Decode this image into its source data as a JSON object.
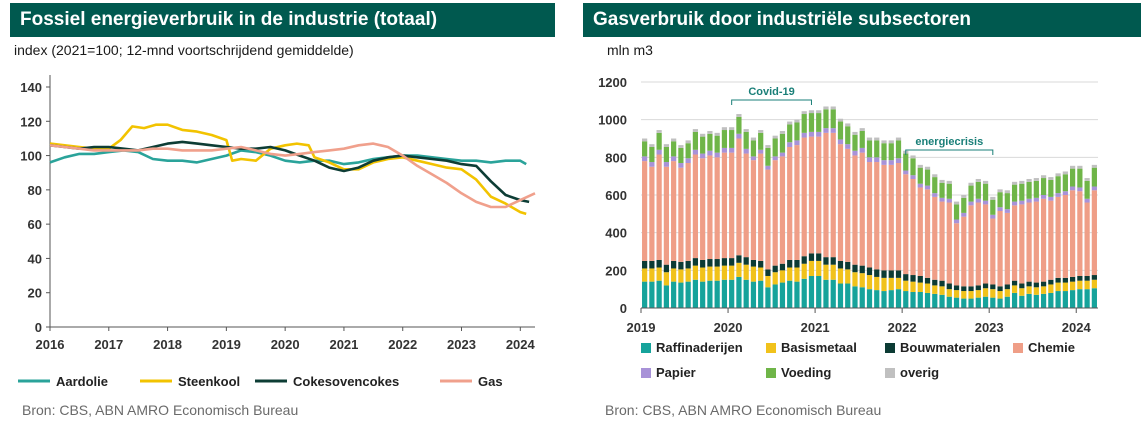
{
  "colors": {
    "header_bg": "#00594f",
    "aardolie": "#2aa39a",
    "steenkool": "#f2c300",
    "cokesovencokes": "#0d3d35",
    "gas": "#f0a08c",
    "raffinaderijen": "#16a39b",
    "basismetaal": "#f1c21b",
    "bouwmaterialen": "#0c3b34",
    "chemie": "#ef9e87",
    "papier": "#a892d8",
    "voeding": "#6fb548",
    "overig": "#c0c0c0",
    "annotation": "#1a7f78"
  },
  "left": {
    "title": "Fossiel energieverbruik in de industrie (totaal)",
    "subtitle": "index (2021=100; 12-mnd voortschrijdend gemiddelde)",
    "source": "Bron: CBS, ABN AMRO Economisch Bureau"
  },
  "right": {
    "title": "Gasverbruik door industriële subsectoren",
    "subtitle": "mln m3",
    "source": "Bron: CBS, ABN AMRO Economisch Bureau"
  },
  "chart_data": [
    {
      "type": "line",
      "title": "Fossiel energieverbruik in de industrie (totaal)",
      "ylabel": "index (2021=100; 12-mnd voortschrijdend gemiddelde)",
      "ylim": [
        0,
        140
      ],
      "yticks": [
        0,
        20,
        40,
        60,
        80,
        100,
        120,
        140
      ],
      "xlim": [
        2016,
        2024.25
      ],
      "xticks": [
        "2016",
        "2017",
        "2018",
        "2019",
        "2020",
        "2021",
        "2022",
        "2023",
        "2024"
      ],
      "grid": false,
      "legend": "bottom",
      "series": [
        {
          "name": "Aardolie",
          "color_key": "aardolie",
          "x": [
            2016,
            2016.25,
            2016.5,
            2016.75,
            2017,
            2017.25,
            2017.5,
            2017.75,
            2018,
            2018.25,
            2018.5,
            2018.75,
            2019,
            2019.25,
            2019.5,
            2019.75,
            2020,
            2020.25,
            2020.5,
            2020.75,
            2021,
            2021.25,
            2021.5,
            2021.75,
            2022,
            2022.25,
            2022.5,
            2022.75,
            2023,
            2023.25,
            2023.5,
            2023.75,
            2024,
            2024.1
          ],
          "y": [
            96,
            99,
            101,
            101,
            102,
            103,
            102,
            98,
            97,
            97,
            96,
            98,
            100,
            103,
            102,
            100,
            97,
            96,
            97,
            97,
            95,
            96,
            98,
            99,
            100,
            100,
            99,
            98,
            97,
            97,
            96,
            97,
            97,
            95
          ]
        },
        {
          "name": "Steenkool",
          "color_key": "steenkool",
          "x": [
            2016,
            2016.25,
            2016.5,
            2016.75,
            2017,
            2017.2,
            2017.4,
            2017.6,
            2017.8,
            2018,
            2018.25,
            2018.5,
            2018.75,
            2019,
            2019.1,
            2019.25,
            2019.5,
            2019.75,
            2020,
            2020.2,
            2020.4,
            2020.5,
            2020.75,
            2021,
            2021.25,
            2021.5,
            2021.75,
            2022,
            2022.25,
            2022.5,
            2022.75,
            2023,
            2023.25,
            2023.5,
            2023.75,
            2024,
            2024.1
          ],
          "y": [
            107,
            106,
            105,
            104,
            104,
            109,
            117,
            116,
            118,
            118,
            115,
            114,
            112,
            109,
            97,
            98,
            97,
            104,
            106,
            107,
            106,
            99,
            96,
            92,
            92,
            96,
            98,
            99,
            97,
            95,
            93,
            92,
            86,
            76,
            72,
            67,
            66
          ]
        },
        {
          "name": "Cokesovencokes",
          "color_key": "cokesovencokes",
          "x": [
            2016,
            2016.25,
            2016.5,
            2016.75,
            2017,
            2017.25,
            2017.5,
            2017.75,
            2018,
            2018.25,
            2018.5,
            2018.75,
            2019,
            2019.25,
            2019.5,
            2019.75,
            2020,
            2020.25,
            2020.5,
            2020.75,
            2021,
            2021.25,
            2021.5,
            2021.75,
            2022,
            2022.25,
            2022.5,
            2022.75,
            2023,
            2023.25,
            2023.5,
            2023.75,
            2024,
            2024.15
          ],
          "y": [
            106,
            105,
            104,
            105,
            105,
            104,
            103,
            105,
            107,
            108,
            107,
            106,
            105,
            104,
            104,
            105,
            103,
            100,
            97,
            93,
            91,
            93,
            97,
            99,
            100,
            99,
            98,
            97,
            95,
            94,
            85,
            77,
            74,
            73
          ]
        },
        {
          "name": "Gas",
          "color_key": "gas",
          "x": [
            2016,
            2016.25,
            2016.5,
            2016.75,
            2017,
            2017.25,
            2017.5,
            2017.75,
            2018,
            2018.25,
            2018.5,
            2018.75,
            2019,
            2019.25,
            2019.5,
            2019.75,
            2020,
            2020.25,
            2020.5,
            2020.75,
            2021,
            2021.25,
            2021.5,
            2021.75,
            2022,
            2022.25,
            2022.5,
            2022.75,
            2023,
            2023.25,
            2023.5,
            2023.75,
            2024,
            2024.25
          ],
          "y": [
            106,
            105,
            104,
            103,
            103,
            103,
            103,
            104,
            104,
            103,
            103,
            103,
            104,
            105,
            103,
            101,
            100,
            101,
            102,
            103,
            104,
            106,
            107,
            105,
            100,
            94,
            89,
            84,
            78,
            73,
            70,
            70,
            74,
            78
          ]
        }
      ]
    },
    {
      "type": "bar",
      "stacked": true,
      "title": "Gasverbruik door industriële subsectoren",
      "ylabel": "mln m3",
      "ylim": [
        0,
        1200
      ],
      "yticks": [
        0,
        200,
        400,
        600,
        800,
        1000,
        1200
      ],
      "xticks": [
        "2019",
        "2020",
        "2021",
        "2022",
        "2023",
        "2024"
      ],
      "grid": true,
      "legend": "bottom",
      "x_start": "2019-01",
      "annotations": [
        {
          "text": "Covid-19",
          "from": "2020-01",
          "to": "2020-12"
        },
        {
          "text": "energiecrisis",
          "from": "2022-01",
          "to": "2023-01"
        }
      ],
      "categories": [
        "2019-01",
        "2019-02",
        "2019-03",
        "2019-04",
        "2019-05",
        "2019-06",
        "2019-07",
        "2019-08",
        "2019-09",
        "2019-10",
        "2019-11",
        "2019-12",
        "2020-01",
        "2020-02",
        "2020-03",
        "2020-04",
        "2020-05",
        "2020-06",
        "2020-07",
        "2020-08",
        "2020-09",
        "2020-10",
        "2020-11",
        "2020-12",
        "2021-01",
        "2021-02",
        "2021-03",
        "2021-04",
        "2021-05",
        "2021-06",
        "2021-07",
        "2021-08",
        "2021-09",
        "2021-10",
        "2021-11",
        "2021-12",
        "2022-01",
        "2022-02",
        "2022-03",
        "2022-04",
        "2022-05",
        "2022-06",
        "2022-07",
        "2022-08",
        "2022-09",
        "2022-10",
        "2022-11",
        "2022-12",
        "2023-01",
        "2023-02",
        "2023-03",
        "2023-04",
        "2023-05",
        "2023-06",
        "2023-07",
        "2023-08",
        "2023-09",
        "2023-10",
        "2023-11",
        "2023-12",
        "2024-01",
        "2024-02",
        "2024-03"
      ],
      "series": [
        {
          "name": "Raffinaderijen",
          "color_key": "raffinaderijen",
          "values": [
            140,
            140,
            145,
            120,
            140,
            135,
            140,
            150,
            140,
            145,
            145,
            150,
            150,
            165,
            150,
            140,
            145,
            110,
            125,
            135,
            145,
            140,
            155,
            170,
            170,
            150,
            150,
            130,
            130,
            115,
            110,
            100,
            95,
            90,
            95,
            100,
            90,
            85,
            85,
            80,
            75,
            70,
            60,
            55,
            50,
            50,
            55,
            60,
            55,
            50,
            60,
            80,
            65,
            75,
            70,
            75,
            80,
            90,
            90,
            95,
            100,
            100,
            105
          ]
        },
        {
          "name": "Basismetaal",
          "color_key": "basismetaal",
          "values": [
            70,
            70,
            70,
            70,
            70,
            70,
            70,
            75,
            75,
            75,
            75,
            75,
            75,
            75,
            80,
            80,
            70,
            60,
            65,
            65,
            70,
            75,
            80,
            80,
            80,
            80,
            80,
            80,
            75,
            75,
            75,
            75,
            70,
            70,
            65,
            60,
            55,
            55,
            50,
            50,
            45,
            45,
            40,
            40,
            40,
            40,
            40,
            45,
            45,
            40,
            40,
            40,
            40,
            40,
            40,
            40,
            45,
            45,
            45,
            45,
            45,
            45,
            45
          ]
        },
        {
          "name": "Bouwmaterialen",
          "color_key": "bouwmaterialen",
          "values": [
            40,
            40,
            40,
            40,
            40,
            40,
            40,
            40,
            40,
            40,
            40,
            40,
            40,
            40,
            40,
            35,
            35,
            35,
            35,
            35,
            40,
            40,
            40,
            40,
            40,
            40,
            40,
            40,
            40,
            40,
            40,
            40,
            40,
            40,
            40,
            40,
            35,
            35,
            35,
            30,
            30,
            30,
            30,
            25,
            25,
            25,
            25,
            25,
            25,
            25,
            25,
            25,
            25,
            25,
            25,
            25,
            25,
            25,
            25,
            25,
            25,
            25,
            25
          ]
        },
        {
          "name": "Chemie",
          "color_key": "chemie",
          "values": [
            530,
            500,
            560,
            520,
            530,
            500,
            520,
            550,
            540,
            550,
            540,
            560,
            560,
            620,
            550,
            530,
            570,
            530,
            560,
            570,
            600,
            610,
            630,
            620,
            620,
            660,
            660,
            620,
            600,
            580,
            600,
            560,
            570,
            560,
            560,
            570,
            530,
            510,
            470,
            470,
            440,
            420,
            430,
            330,
            370,
            430,
            440,
            420,
            350,
            400,
            380,
            400,
            420,
            420,
            430,
            440,
            420,
            430,
            440,
            460,
            450,
            390,
            450
          ]
        },
        {
          "name": "Papier",
          "color_key": "papier",
          "values": [
            25,
            25,
            25,
            25,
            25,
            25,
            25,
            25,
            25,
            25,
            25,
            25,
            25,
            25,
            25,
            20,
            20,
            20,
            20,
            20,
            25,
            25,
            25,
            25,
            25,
            25,
            25,
            25,
            25,
            25,
            25,
            25,
            25,
            25,
            25,
            25,
            20,
            20,
            20,
            20,
            20,
            20,
            20,
            20,
            20,
            20,
            20,
            20,
            20,
            20,
            20,
            20,
            20,
            20,
            20,
            20,
            20,
            20,
            20,
            20,
            20,
            20,
            20
          ]
        },
        {
          "name": "Voeding",
          "color_key": "voeding",
          "values": [
            80,
            80,
            90,
            80,
            80,
            80,
            80,
            95,
            90,
            90,
            90,
            95,
            95,
            90,
            90,
            85,
            90,
            95,
            95,
            100,
            95,
            95,
            100,
            100,
            100,
            100,
            100,
            95,
            95,
            85,
            90,
            90,
            90,
            90,
            90,
            95,
            90,
            90,
            85,
            85,
            85,
            80,
            80,
            80,
            80,
            85,
            90,
            90,
            80,
            80,
            85,
            90,
            90,
            90,
            90,
            90,
            90,
            90,
            90,
            95,
            100,
            95,
            100
          ]
        },
        {
          "name": "overig",
          "color_key": "overig",
          "values": [
            15,
            15,
            15,
            15,
            15,
            15,
            15,
            15,
            15,
            15,
            15,
            15,
            15,
            15,
            15,
            15,
            15,
            15,
            15,
            15,
            15,
            15,
            15,
            15,
            15,
            15,
            15,
            15,
            15,
            15,
            15,
            15,
            15,
            15,
            15,
            15,
            15,
            15,
            15,
            15,
            15,
            15,
            15,
            15,
            15,
            15,
            15,
            15,
            15,
            15,
            15,
            15,
            15,
            15,
            15,
            15,
            15,
            15,
            15,
            15,
            15,
            15,
            15
          ]
        }
      ]
    }
  ]
}
